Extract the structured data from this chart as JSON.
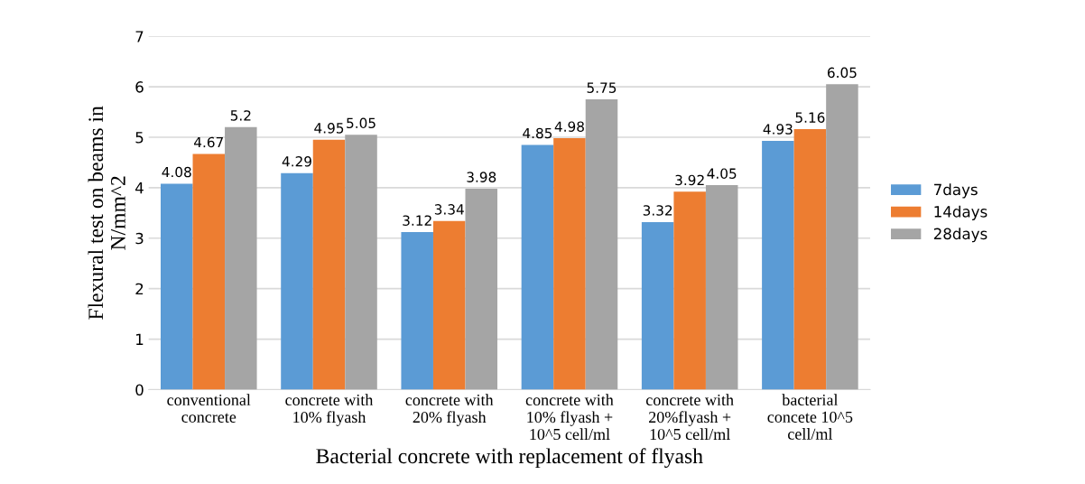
{
  "chart_data": {
    "type": "bar",
    "xlabel": "Bacterial concrete with replacement of flyash",
    "ylabel": "Flexural test on beams in\nN/mm^2",
    "categories": [
      "conventional\nconcrete",
      "concrete with\n10% flyash",
      "concrete with\n20% flyash",
      "concrete with\n10% flyash +\n10^5 cell/ml",
      "concrete with\n20%flyash +\n10^5 cell/ml",
      "bacterial\nconcete 10^5\ncell/ml"
    ],
    "series": [
      {
        "name": "7days",
        "color": "#5b9bd5",
        "values": [
          4.08,
          4.29,
          3.12,
          4.85,
          3.32,
          4.93
        ]
      },
      {
        "name": "14days",
        "color": "#ed7d31",
        "values": [
          4.67,
          4.95,
          3.34,
          4.98,
          3.92,
          5.16
        ]
      },
      {
        "name": "28days",
        "color": "#a5a5a5",
        "values": [
          5.2,
          5.05,
          3.98,
          5.75,
          4.05,
          6.05
        ]
      }
    ],
    "ylim": [
      0,
      7
    ],
    "yticks": [
      0,
      1,
      2,
      3,
      4,
      5,
      6,
      7
    ],
    "grid": "y",
    "legend": "right",
    "data_labels": true
  }
}
